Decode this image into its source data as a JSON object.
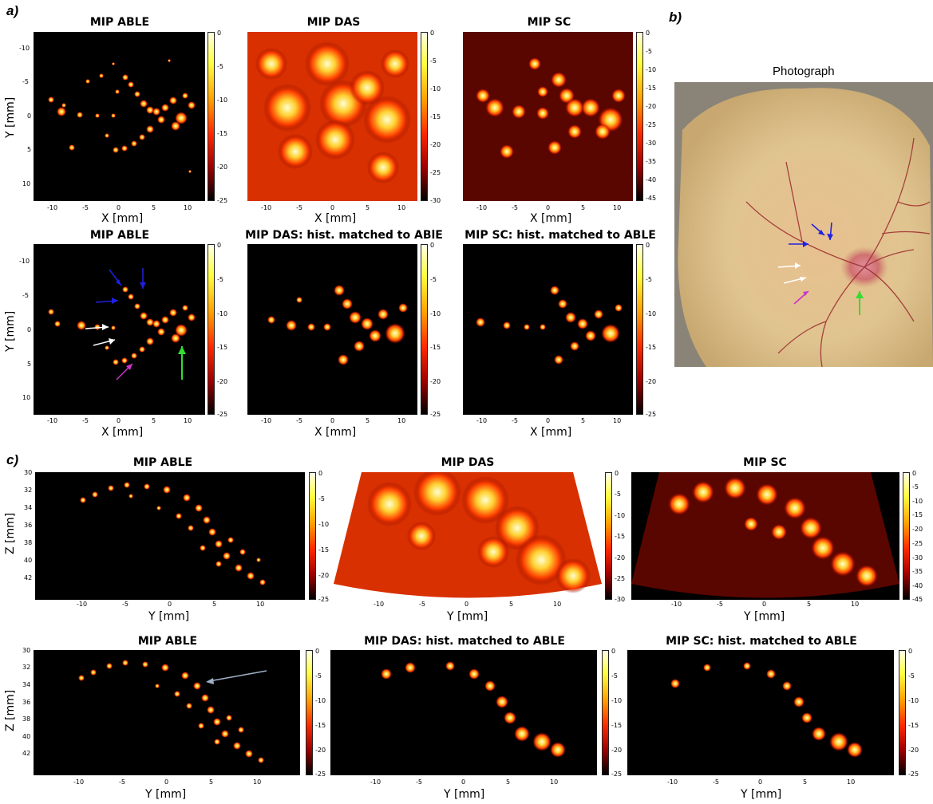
{
  "figure": {
    "panel_a": "a)",
    "panel_b": "b)",
    "panel_c": "c)",
    "photo_title": "Photograph",
    "titles": {
      "a_r1": [
        "MIP ABLE",
        "MIP DAS",
        "MIP SC"
      ],
      "a_r2": [
        "MIP ABLE",
        "MIP DAS: hist. matched to ABlE",
        "MIP SC: hist. matched to ABLE"
      ],
      "c_r1": [
        "MIP ABLE",
        "MIP DAS",
        "MIP SC"
      ],
      "c_r2": [
        "MIP ABLE",
        "MIP DAS: hist. matched to ABLE",
        "MIP SC: hist. matched to ABLE"
      ]
    },
    "axis_labels": {
      "x_mm": "X [mm]",
      "y_mm": "Y [mm]",
      "z_mm": "Z [mm]"
    },
    "ticks": {
      "a_x": [
        "-10",
        "-5",
        "0",
        "5",
        "10"
      ],
      "a_y": [
        "-10",
        "-5",
        "0",
        "5",
        "10"
      ],
      "c_x": [
        "-10",
        "-5",
        "0",
        "5",
        "10"
      ],
      "c_z": [
        "30",
        "32",
        "34",
        "36",
        "38",
        "40",
        "42"
      ]
    },
    "colorbars": {
      "range_25": [
        "0",
        "-5",
        "-10",
        "-15",
        "-20",
        "-25"
      ],
      "range_30": [
        "0",
        "-5",
        "-10",
        "-15",
        "-20",
        "-25",
        "-30"
      ],
      "range_45": [
        "0",
        "-5",
        "-10",
        "-15",
        "-20",
        "-25",
        "-30",
        "-35",
        "-40",
        "-45"
      ]
    },
    "colors": {
      "colormap": [
        "#000000",
        "#a00000",
        "#ff2a00",
        "#ffa000",
        "#ffff40",
        "#ffffe8"
      ],
      "arrow_blue": "#2020e0",
      "arrow_white": "#ffffff",
      "arrow_magenta": "#cc33cc",
      "arrow_green": "#33dd33",
      "arrow_grey": "#a0b0c8"
    }
  }
}
